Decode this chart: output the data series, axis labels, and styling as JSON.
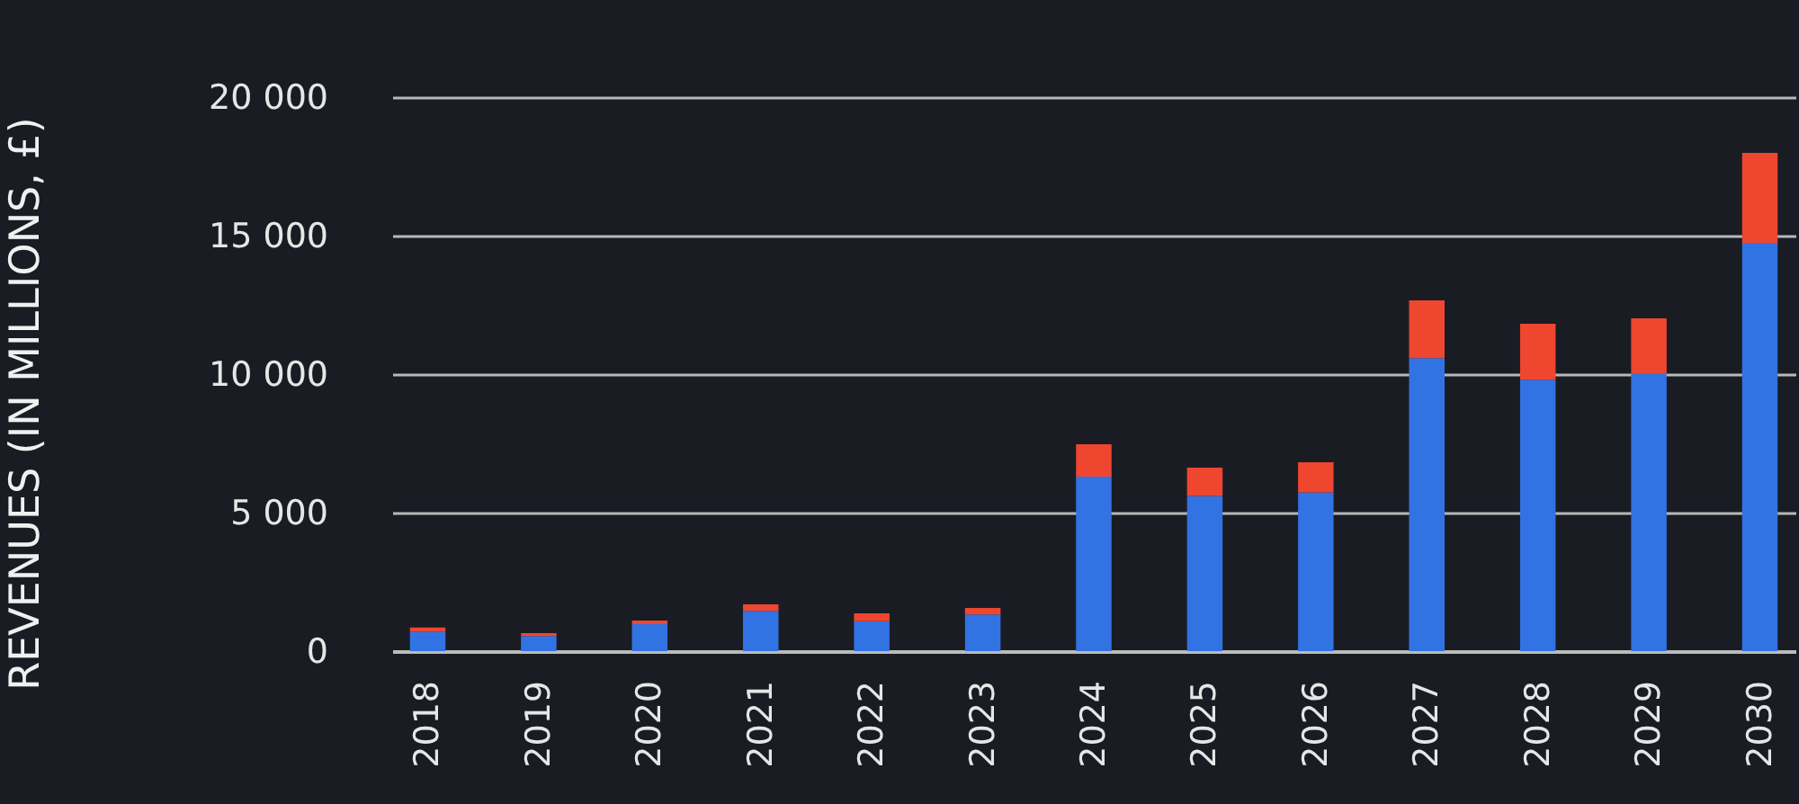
{
  "chart_data": {
    "type": "bar",
    "ylabel": "REVENUES (IN MILLIONS, £)",
    "categories": [
      "2018",
      "2019",
      "2020",
      "2021",
      "2022",
      "2023",
      "2024",
      "2025",
      "2026",
      "2027",
      "2028",
      "2029",
      "2030"
    ],
    "stacked": true,
    "series": [
      {
        "color": "#3273e3",
        "values": [
          700,
          540,
          970,
          1450,
          1080,
          1320,
          6300,
          5600,
          5730,
          10580,
          9800,
          10020,
          14740
        ]
      },
      {
        "color": "#ef4630",
        "values": [
          150,
          110,
          130,
          240,
          280,
          240,
          1170,
          1020,
          1090,
          2080,
          2020,
          1990,
          3250
        ]
      }
    ],
    "ylim": [
      0,
      20000
    ],
    "yticks": [
      {
        "value": 0,
        "label": "0"
      },
      {
        "value": 5000,
        "label": "5 000"
      },
      {
        "value": 10000,
        "label": "10 000"
      },
      {
        "value": 15000,
        "label": "15 000"
      },
      {
        "value": 20000,
        "label": "20 000"
      }
    ],
    "grid": "y",
    "legend": false
  }
}
